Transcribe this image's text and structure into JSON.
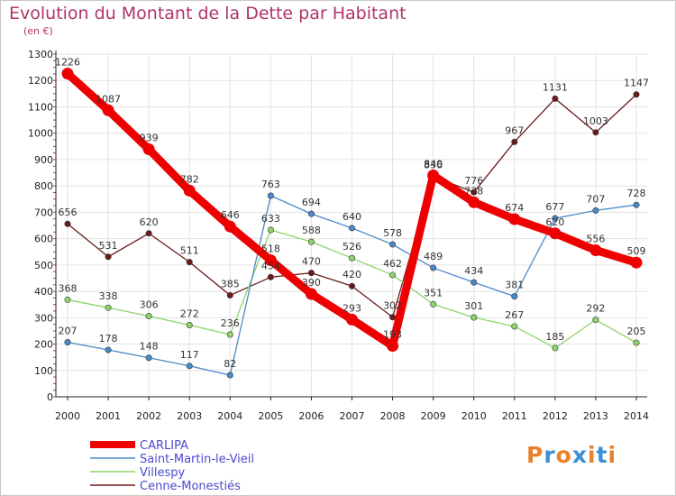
{
  "title": "Evolution du Montant de la Dette par Habitant",
  "subtitle": "(en €)",
  "logo": {
    "letters": [
      "P",
      "r",
      "o",
      "x",
      "i",
      "t",
      "i"
    ],
    "colors": [
      "#e8822a",
      "#3a8fd6",
      "#e8822a",
      "#3a8fd6",
      "#e8822a",
      "#3a8fd6",
      "#e8822a"
    ]
  },
  "chart_data": {
    "type": "line",
    "x": [
      "2000",
      "2001",
      "2002",
      "2003",
      "2004",
      "2005",
      "2006",
      "2007",
      "2008",
      "2009",
      "2010",
      "2011",
      "2012",
      "2013",
      "2014"
    ],
    "ylim": [
      0,
      1300
    ],
    "yticks": [
      0,
      100,
      200,
      300,
      400,
      500,
      600,
      700,
      800,
      900,
      1000,
      1100,
      1200,
      1300
    ],
    "grid": true,
    "legend_position": "bottom-left",
    "series": [
      {
        "name": "Cenne-Monestiés",
        "color": "#6b1a1a",
        "values": [
          656,
          531,
          620,
          511,
          385,
          454,
          470,
          420,
          302,
          836,
          776,
          967,
          1131,
          1003,
          1147
        ]
      },
      {
        "name": "Villespy",
        "color": "#8ed46a",
        "values": [
          368,
          338,
          306,
          272,
          236,
          633,
          588,
          526,
          462,
          351,
          301,
          267,
          185,
          292,
          205
        ]
      },
      {
        "name": "Saint-Martin-le-Vieil",
        "color": "#4a8ac8",
        "values": [
          207,
          178,
          148,
          117,
          82,
          763,
          694,
          640,
          578,
          489,
          434,
          381,
          677,
          707,
          728
        ]
      },
      {
        "name": "CARLIPA",
        "color": "#ee0000",
        "values": [
          1226,
          1087,
          939,
          782,
          646,
          518,
          390,
          293,
          193,
          840,
          738,
          674,
          620,
          556,
          509
        ]
      }
    ],
    "labels": {
      "CARLIPA": [
        "1226",
        "1087",
        "939",
        "782",
        "646",
        "518",
        "390",
        "293",
        "193",
        "840",
        "738",
        "674",
        "620",
        "556",
        "509"
      ],
      "Saint-Martin-le-Vieil": [
        "207",
        "178",
        "148",
        "117",
        "82",
        "763",
        "694",
        "640",
        "578",
        "489",
        "434",
        "381",
        "677",
        "707",
        "728"
      ],
      "Villespy": [
        "368",
        "338",
        "306",
        "272",
        "236",
        "633",
        "588",
        "526",
        "462",
        "351",
        "301",
        "267",
        "185",
        "292",
        "205"
      ],
      "Cenne-Monestiés": [
        "656",
        "531",
        "620",
        "511",
        "385",
        "454",
        "470",
        "420",
        "302",
        "836",
        "776",
        "967",
        "1131",
        "1003",
        "1147"
      ]
    }
  }
}
